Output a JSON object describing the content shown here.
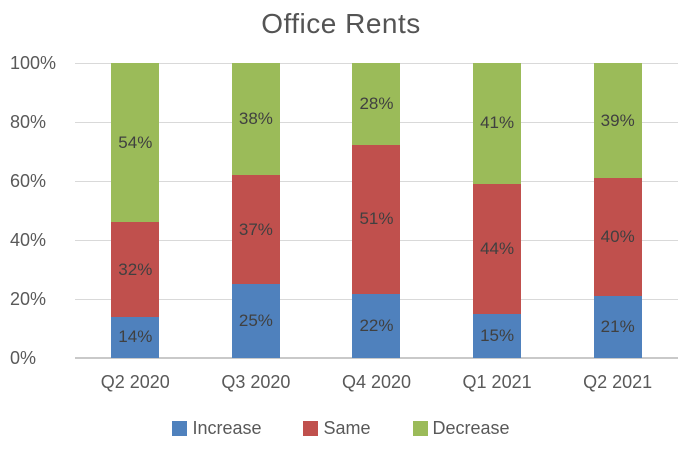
{
  "chart_data": {
    "type": "bar",
    "stacked": true,
    "orientation": "vertical",
    "title": "Office Rents",
    "categories": [
      "Q2 2020",
      "Q3 2020",
      "Q4 2020",
      "Q1 2021",
      "Q2 2021"
    ],
    "series": [
      {
        "name": "Increase",
        "color": "#4F81BD",
        "values": [
          14,
          25,
          22,
          15,
          21
        ]
      },
      {
        "name": "Same",
        "color": "#C0504D",
        "values": [
          32,
          37,
          51,
          44,
          40
        ]
      },
      {
        "name": "Decrease",
        "color": "#9BBB59",
        "values": [
          54,
          38,
          28,
          41,
          39
        ]
      }
    ],
    "value_suffix": "%",
    "ylim": [
      0,
      100
    ],
    "y_tick_values": [
      0,
      20,
      40,
      60,
      80,
      100
    ],
    "y_tick_labels": [
      "0%",
      "20%",
      "40%",
      "60%",
      "80%",
      "100%"
    ],
    "grid": true,
    "legend_position": "bottom",
    "legend": [
      "Increase",
      "Same",
      "Decrease"
    ],
    "colors": {
      "grid_line": "#D9D9D9",
      "baseline": "#C9C9C9",
      "axis_text": "#595959",
      "data_label_text": "#404040",
      "title_text": "#545454",
      "background": "#FFFFFF"
    }
  }
}
